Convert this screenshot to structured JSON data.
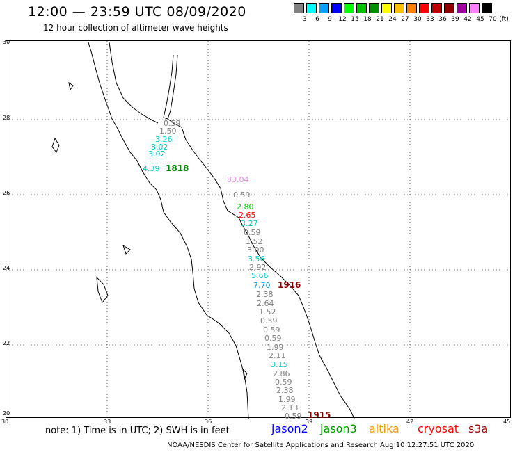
{
  "title": "12:00 — 23:59 UTC 08/09/2020",
  "subtitle": "12 hour collection of altimeter wave heights",
  "color_scale": {
    "unit": "(ft)",
    "colors": [
      "#808080",
      "#00ffff",
      "#00a0ff",
      "#0000ff",
      "#00ff00",
      "#00c000",
      "#009000",
      "#ffff00",
      "#ffc000",
      "#ff8000",
      "#ff0000",
      "#c00000",
      "#900000",
      "#a000a0",
      "#ff80ff",
      "#000000"
    ],
    "labels": [
      "3",
      "6",
      "9",
      "12",
      "15",
      "18",
      "21",
      "24",
      "27",
      "30",
      "33",
      "36",
      "39",
      "42",
      "45",
      "70"
    ]
  },
  "axes": {
    "lat_labels": [
      "30",
      "28",
      "26",
      "24",
      "22",
      "20"
    ],
    "lon_labels": [
      "30",
      "33",
      "36",
      "39",
      "42",
      "45"
    ]
  },
  "wave_heights": [
    {
      "text": "0.59",
      "color": "#808080"
    },
    {
      "text": "1.50",
      "color": "#808080"
    },
    {
      "text": "3.26",
      "color": "#00cccc"
    },
    {
      "text": "3.02",
      "color": "#00cccc"
    },
    {
      "text": "3.02",
      "color": "#00cccc"
    },
    {
      "text": "4.39",
      "color": "#00cccc"
    },
    {
      "text": "83.04",
      "color": "#ee88ee"
    },
    {
      "text": "0.59",
      "color": "#808080"
    },
    {
      "text": "2.80",
      "color": "#00cc00"
    },
    {
      "text": "2.65",
      "color": "#ff0000"
    },
    {
      "text": "3.27",
      "color": "#00cccc"
    },
    {
      "text": "0.59",
      "color": "#808080"
    },
    {
      "text": "1.52",
      "color": "#808080"
    },
    {
      "text": "3.00",
      "color": "#808080"
    },
    {
      "text": "3.56",
      "color": "#00cccc"
    },
    {
      "text": "2.92",
      "color": "#808080"
    },
    {
      "text": "5.66",
      "color": "#00cccc"
    },
    {
      "text": "7.70",
      "color": "#0099ee"
    },
    {
      "text": "2.38",
      "color": "#808080"
    },
    {
      "text": "2.64",
      "color": "#808080"
    },
    {
      "text": "1.52",
      "color": "#808080"
    },
    {
      "text": "0.59",
      "color": "#808080"
    },
    {
      "text": "0.59",
      "color": "#808080"
    },
    {
      "text": "0.59",
      "color": "#808080"
    },
    {
      "text": "1.99",
      "color": "#808080"
    },
    {
      "text": "2.11",
      "color": "#808080"
    },
    {
      "text": "3.15",
      "color": "#00cccc"
    },
    {
      "text": "2.86",
      "color": "#808080"
    },
    {
      "text": "0.59",
      "color": "#808080"
    },
    {
      "text": "2.38",
      "color": "#808080"
    },
    {
      "text": "1.99",
      "color": "#808080"
    },
    {
      "text": "2.13",
      "color": "#808080"
    },
    {
      "text": "0.59",
      "color": "#808080"
    }
  ],
  "pass_times": [
    {
      "text": "1818",
      "color": "#008800"
    },
    {
      "text": "1916",
      "color": "#880000"
    },
    {
      "text": "1915",
      "color": "#880000"
    }
  ],
  "note": "note: 1) Time is in UTC; 2) SWH is in feet",
  "satellites": [
    {
      "name": "jason2",
      "color": "#0000ff"
    },
    {
      "name": "jason3",
      "color": "#009900"
    },
    {
      "name": "altika",
      "color": "#ff9900"
    },
    {
      "name": "cryosat",
      "color": "#ff0000"
    },
    {
      "name": "s3a",
      "color": "#990000"
    }
  ],
  "credit": "NOAA/NESDIS Center for Satellite Applications and Research    Aug 10 12:27:51 UTC 2020"
}
